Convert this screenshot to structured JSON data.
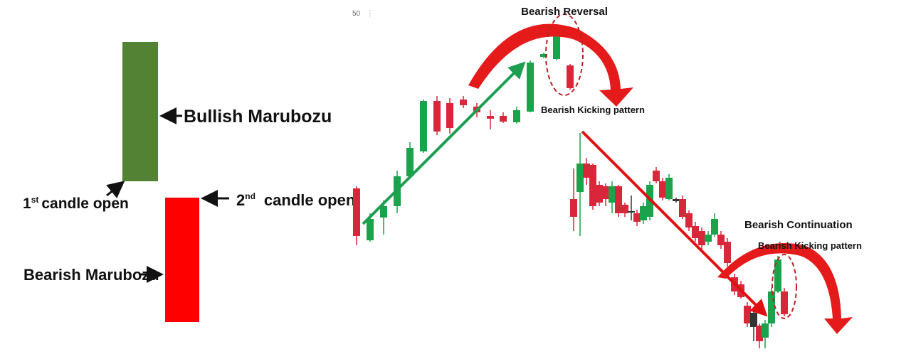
{
  "toolbar": {
    "label": "50"
  },
  "left": {
    "bullish": "Bullish Marubozu",
    "first_open": {
      "num": "1",
      "sup": "st",
      "text": "candle open"
    },
    "second_open": {
      "num": "2",
      "sup": "nd",
      "text": "candle open"
    },
    "bearish": "Bearish Marubozu"
  },
  "right": {
    "reversal_title": "Bearish Reversal",
    "reversal_pattern": "Bearish Kicking pattern",
    "continuation_title": "Bearish Continuation",
    "continuation_pattern": "Bearish Kicking pattern"
  }
}
